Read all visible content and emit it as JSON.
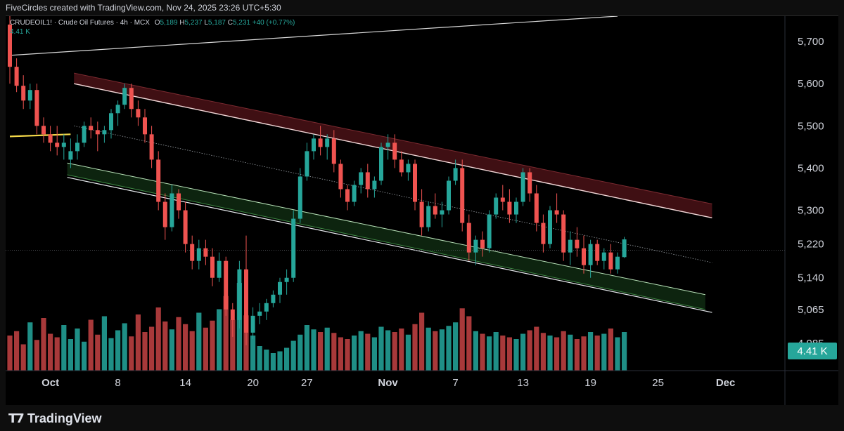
{
  "header": {
    "caption": "FiveCircles created with TradingView.com, Nov 24, 2025 23:26 UTC+5:30"
  },
  "legend": {
    "symbol": "CRUDEOIL1! · Crude Oil Futures · 4h · MCX",
    "o_label": "O",
    "o_value": "5,189",
    "h_label": "H",
    "h_value": "5,237",
    "l_label": "L",
    "l_value": "5,187",
    "c_label": "C",
    "c_value": "5,231",
    "change": "+40 (+0.77%)",
    "volume": "4.41 K"
  },
  "footer": {
    "brand": "TradingView"
  },
  "colors": {
    "up": "#26a69a",
    "down": "#ef5350",
    "vol_up": "#1f8f86",
    "vol_down": "#a8393a",
    "upper_band_fill": "#4a1216",
    "lower_band_fill": "#0f2a12",
    "support_yellow": "#f5d94a",
    "vol_badge": "#26a69a"
  },
  "chart_data": {
    "type": "candlestick",
    "timeframe": "4h",
    "x_ticks": [
      {
        "label": "Oct",
        "bar": 6
      },
      {
        "label": "8",
        "bar": 16
      },
      {
        "label": "14",
        "bar": 26
      },
      {
        "label": "20",
        "bar": 36
      },
      {
        "label": "27",
        "bar": 44
      },
      {
        "label": "Nov",
        "bar": 56
      },
      {
        "label": "7",
        "bar": 66
      },
      {
        "label": "13",
        "bar": 76
      },
      {
        "label": "19",
        "bar": 86
      },
      {
        "label": "25",
        "bar": 96
      },
      {
        "label": "Dec",
        "bar": 106
      }
    ],
    "y_ticks": [
      "5,700",
      "5,600",
      "5,500",
      "5,400",
      "5,300",
      "5,220",
      "5,140",
      "5,065",
      "4,985"
    ],
    "ylim": [
      4920,
      5760
    ],
    "last_volume_label": "4.41 K",
    "channel": {
      "upper_top": [
        [
          9.5,
          5625
        ],
        [
          104,
          5315
        ]
      ],
      "upper_bottom": [
        [
          9.5,
          5600
        ],
        [
          104,
          5282
        ]
      ],
      "midline": [
        [
          9.5,
          5500
        ],
        [
          104,
          5176
        ]
      ],
      "lower_top": [
        [
          8.5,
          5412
        ],
        [
          103,
          5100
        ]
      ],
      "lower_bottom": [
        [
          8.5,
          5384
        ],
        [
          103,
          5065
        ]
      ],
      "lower_outer": [
        [
          8.5,
          5378
        ],
        [
          104,
          5058
        ]
      ]
    },
    "support_line": [
      [
        0,
        5475
      ],
      [
        9,
        5480
      ]
    ],
    "long_trendline": [
      [
        0,
        5667
      ],
      [
        90,
        5760
      ]
    ],
    "current_price_line": 5205,
    "candles": [
      [
        5740,
        5770,
        5600,
        5640
      ],
      [
        5640,
        5660,
        5580,
        5595
      ],
      [
        5595,
        5620,
        5540,
        5560
      ],
      [
        5560,
        5600,
        5540,
        5585
      ],
      [
        5585,
        5600,
        5480,
        5500
      ],
      [
        5500,
        5520,
        5460,
        5480
      ],
      [
        5480,
        5500,
        5440,
        5460
      ],
      [
        5460,
        5500,
        5430,
        5450
      ],
      [
        5450,
        5480,
        5420,
        5460
      ],
      [
        5420,
        5470,
        5400,
        5440
      ],
      [
        5440,
        5480,
        5420,
        5460
      ],
      [
        5460,
        5510,
        5450,
        5500
      ],
      [
        5500,
        5520,
        5470,
        5490
      ],
      [
        5490,
        5510,
        5440,
        5480
      ],
      [
        5480,
        5500,
        5460,
        5490
      ],
      [
        5490,
        5540,
        5470,
        5530
      ],
      [
        5530,
        5560,
        5500,
        5550
      ],
      [
        5550,
        5600,
        5540,
        5590
      ],
      [
        5590,
        5600,
        5520,
        5540
      ],
      [
        5540,
        5560,
        5500,
        5520
      ],
      [
        5520,
        5540,
        5460,
        5480
      ],
      [
        5480,
        5500,
        5400,
        5420
      ],
      [
        5420,
        5440,
        5300,
        5320
      ],
      [
        5320,
        5340,
        5230,
        5260
      ],
      [
        5260,
        5360,
        5250,
        5340
      ],
      [
        5340,
        5350,
        5280,
        5300
      ],
      [
        5300,
        5320,
        5200,
        5220
      ],
      [
        5220,
        5240,
        5160,
        5180
      ],
      [
        5180,
        5230,
        5160,
        5210
      ],
      [
        5210,
        5230,
        5170,
        5190
      ],
      [
        5190,
        5210,
        5120,
        5140
      ],
      [
        5140,
        5200,
        5130,
        5180
      ],
      [
        5180,
        5190,
        5050,
        5065
      ],
      [
        5065,
        5080,
        5000,
        5040
      ],
      [
        5040,
        5180,
        5020,
        5160
      ],
      [
        5160,
        5240,
        4980,
        5010
      ],
      [
        5010,
        5070,
        4995,
        5050
      ],
      [
        5050,
        5080,
        5030,
        5060
      ],
      [
        5060,
        5090,
        5040,
        5080
      ],
      [
        5080,
        5110,
        5070,
        5100
      ],
      [
        5100,
        5140,
        5080,
        5130
      ],
      [
        5130,
        5160,
        5100,
        5140
      ],
      [
        5140,
        5300,
        5130,
        5280
      ],
      [
        5280,
        5400,
        5270,
        5380
      ],
      [
        5380,
        5460,
        5370,
        5440
      ],
      [
        5440,
        5480,
        5420,
        5470
      ],
      [
        5470,
        5500,
        5430,
        5450
      ],
      [
        5450,
        5480,
        5420,
        5470
      ],
      [
        5470,
        5490,
        5390,
        5410
      ],
      [
        5410,
        5420,
        5330,
        5350
      ],
      [
        5350,
        5360,
        5300,
        5320
      ],
      [
        5320,
        5370,
        5310,
        5360
      ],
      [
        5360,
        5400,
        5340,
        5390
      ],
      [
        5390,
        5410,
        5330,
        5350
      ],
      [
        5350,
        5380,
        5330,
        5370
      ],
      [
        5370,
        5460,
        5360,
        5450
      ],
      [
        5450,
        5480,
        5420,
        5460
      ],
      [
        5460,
        5480,
        5400,
        5420
      ],
      [
        5420,
        5440,
        5380,
        5390
      ],
      [
        5390,
        5420,
        5370,
        5410
      ],
      [
        5410,
        5420,
        5300,
        5320
      ],
      [
        5320,
        5350,
        5240,
        5260
      ],
      [
        5260,
        5320,
        5250,
        5310
      ],
      [
        5310,
        5340,
        5280,
        5290
      ],
      [
        5290,
        5320,
        5260,
        5300
      ],
      [
        5300,
        5380,
        5290,
        5370
      ],
      [
        5370,
        5420,
        5360,
        5400
      ],
      [
        5400,
        5420,
        5250,
        5270
      ],
      [
        5270,
        5290,
        5180,
        5200
      ],
      [
        5200,
        5240,
        5170,
        5230
      ],
      [
        5230,
        5250,
        5190,
        5210
      ],
      [
        5210,
        5300,
        5200,
        5290
      ],
      [
        5290,
        5340,
        5280,
        5330
      ],
      [
        5330,
        5360,
        5300,
        5320
      ],
      [
        5320,
        5350,
        5270,
        5290
      ],
      [
        5290,
        5330,
        5270,
        5320
      ],
      [
        5320,
        5400,
        5310,
        5390
      ],
      [
        5390,
        5400,
        5320,
        5340
      ],
      [
        5340,
        5360,
        5250,
        5270
      ],
      [
        5270,
        5290,
        5200,
        5220
      ],
      [
        5220,
        5310,
        5210,
        5300
      ],
      [
        5300,
        5340,
        5270,
        5290
      ],
      [
        5290,
        5300,
        5180,
        5200
      ],
      [
        5200,
        5250,
        5170,
        5230
      ],
      [
        5230,
        5260,
        5190,
        5210
      ],
      [
        5210,
        5240,
        5150,
        5170
      ],
      [
        5170,
        5230,
        5140,
        5220
      ],
      [
        5220,
        5230,
        5170,
        5180
      ],
      [
        5180,
        5210,
        5160,
        5200
      ],
      [
        5200,
        5220,
        5150,
        5160
      ],
      [
        5160,
        5200,
        5150,
        5190
      ],
      [
        5189,
        5237,
        5187,
        5231
      ]
    ],
    "volume": [
      40,
      45,
      30,
      55,
      35,
      60,
      42,
      38,
      52,
      36,
      48,
      33,
      58,
      41,
      62,
      37,
      46,
      54,
      39,
      64,
      44,
      50,
      72,
      56,
      47,
      61,
      53,
      45,
      66,
      49,
      57,
      70,
      85,
      58,
      100,
      63,
      40,
      28,
      24,
      20,
      22,
      26,
      34,
      41,
      52,
      47,
      44,
      49,
      43,
      38,
      36,
      40,
      45,
      42,
      38,
      50,
      46,
      44,
      48,
      41,
      53,
      66,
      49,
      45,
      47,
      51,
      55,
      71,
      62,
      45,
      42,
      39,
      44,
      40,
      38,
      36,
      42,
      46,
      50,
      43,
      40,
      38,
      45,
      41,
      36,
      39,
      44,
      40,
      42,
      48,
      38,
      44
    ]
  }
}
